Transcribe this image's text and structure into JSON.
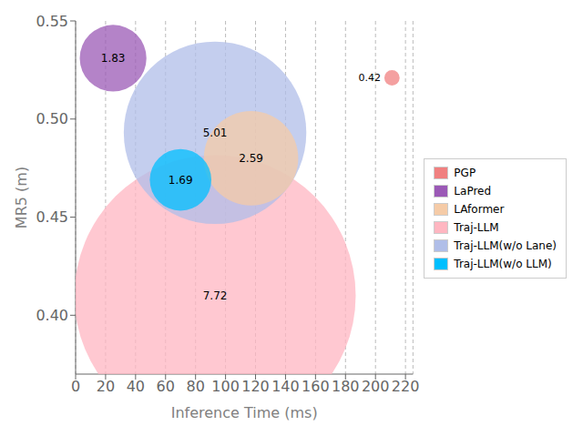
{
  "chart_data": {
    "type": "scatter",
    "xlabel": "Inference Time (ms)",
    "ylabel": "MR5 (m)",
    "series": [
      {
        "name": "PGP",
        "color": "#F08080",
        "x": [
          211
        ],
        "values": [
          0.521
        ],
        "sizes": [
          0.42
        ]
      },
      {
        "name": "LaPred",
        "color": "#9B59B6",
        "x": [
          25
        ],
        "values": [
          0.531
        ],
        "sizes": [
          1.83
        ]
      },
      {
        "name": "LAformer",
        "color": "#F5CBA7",
        "x": [
          117
        ],
        "values": [
          0.48
        ],
        "sizes": [
          2.59
        ]
      },
      {
        "name": "Traj-LLM",
        "color": "#FFB6C1",
        "x": [
          93
        ],
        "values": [
          0.41
        ],
        "sizes": [
          7.72
        ]
      },
      {
        "name": "Traj-LLM(w/o Lane)",
        "color": "#B0BEE8",
        "x": [
          93
        ],
        "values": [
          0.493
        ],
        "sizes": [
          5.01
        ]
      },
      {
        "name": "Traj-LLM(w/o LLM)",
        "color": "#00BFFF",
        "x": [
          70
        ],
        "values": [
          0.469
        ],
        "sizes": [
          1.69
        ]
      }
    ],
    "xlim": [
      0,
      225
    ],
    "ylim": [
      0.37,
      0.55
    ],
    "xticks": [
      0,
      20,
      40,
      60,
      80,
      100,
      120,
      140,
      160,
      180,
      200,
      220
    ],
    "yticks": [
      {
        "value": 0.4,
        "label": "0.40"
      },
      0.45,
      {
        "value": 0.5,
        "label": "0.50"
      },
      0.55
    ],
    "grid": "x",
    "data_labels": true,
    "legend": "right"
  }
}
